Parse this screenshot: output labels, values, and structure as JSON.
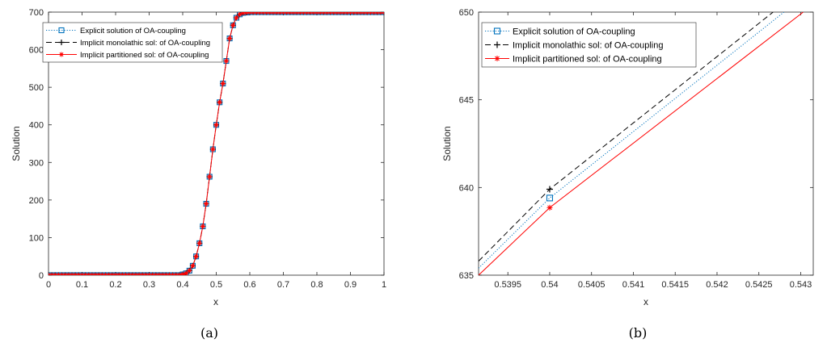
{
  "chart_data": [
    {
      "type": "line",
      "caption": "(a)",
      "xlabel": "x",
      "ylabel": "Solution",
      "xlim": [
        0,
        1
      ],
      "ylim": [
        0,
        700
      ],
      "xticks": [
        "0",
        "0.1",
        "0.2",
        "0.3",
        "0.4",
        "0.5",
        "0.6",
        "0.7",
        "0.8",
        "0.9",
        "1"
      ],
      "yticks": [
        "0",
        "100",
        "200",
        "300",
        "400",
        "500",
        "600",
        "700"
      ],
      "grid": false,
      "legend_position": "top-left",
      "x": [
        0,
        0.39,
        0.4,
        0.41,
        0.42,
        0.43,
        0.44,
        0.45,
        0.46,
        0.47,
        0.48,
        0.49,
        0.5,
        0.51,
        0.52,
        0.53,
        0.54,
        0.55,
        0.56,
        0.57,
        0.58,
        0.59,
        0.6,
        1
      ],
      "series": [
        {
          "name": "Explicit solution of OA-coupling",
          "color": "#0072BD",
          "marker": "square",
          "style": "dotted",
          "values": [
            0,
            0,
            2,
            5,
            12,
            25,
            50,
            85,
            130,
            190,
            262,
            335,
            400,
            460,
            510,
            570,
            630,
            665,
            685,
            694,
            698,
            699,
            700,
            700
          ]
        },
        {
          "name": "Implicit monolathic  sol: of OA-coupling",
          "color": "#000000",
          "marker": "plus",
          "style": "dashed",
          "values": [
            0,
            0,
            2,
            5,
            12,
            25,
            50,
            85,
            130,
            190,
            262,
            335,
            400,
            460,
            510,
            570,
            630,
            665,
            685,
            694,
            698,
            699,
            700,
            700
          ]
        },
        {
          "name": "Implicit partitioned  sol: of OA-coupling",
          "color": "#FF0000",
          "marker": "asterisk",
          "style": "solid",
          "values": [
            0,
            0,
            2,
            5,
            12,
            25,
            50,
            85,
            130,
            190,
            262,
            335,
            400,
            460,
            510,
            570,
            630,
            665,
            685,
            694,
            698,
            699,
            700,
            700
          ]
        }
      ]
    },
    {
      "type": "line",
      "caption": "(b)",
      "xlabel": "x",
      "ylabel": "Solution",
      "xlim": [
        0.53915,
        0.54315
      ],
      "ylim": [
        635,
        650
      ],
      "xticks": [
        "0.5395",
        "0.54",
        "0.5405",
        "0.541",
        "0.5415",
        "0.542",
        "0.5425",
        "0.543"
      ],
      "yticks": [
        "635",
        "640",
        "645",
        "650"
      ],
      "grid": false,
      "legend_position": "top-left",
      "series": [
        {
          "name": "Explicit solution of OA-coupling",
          "color": "#0072BD",
          "marker": "square",
          "style": "dotted",
          "x": [
            0.53915,
            0.54,
            0.5428
          ],
          "values": [
            635.4,
            639.4,
            650
          ]
        },
        {
          "name": "Implicit monolathic  sol: of OA-coupling",
          "color": "#000000",
          "marker": "plus",
          "style": "dashed",
          "x": [
            0.53915,
            0.54,
            0.54267
          ],
          "values": [
            635.8,
            639.9,
            650
          ]
        },
        {
          "name": "Implicit partitioned  sol: of OA-coupling",
          "color": "#FF0000",
          "marker": "asterisk",
          "style": "solid",
          "x": [
            0.53915,
            0.54,
            0.54303
          ],
          "values": [
            635.0,
            638.85,
            650
          ]
        }
      ]
    }
  ]
}
